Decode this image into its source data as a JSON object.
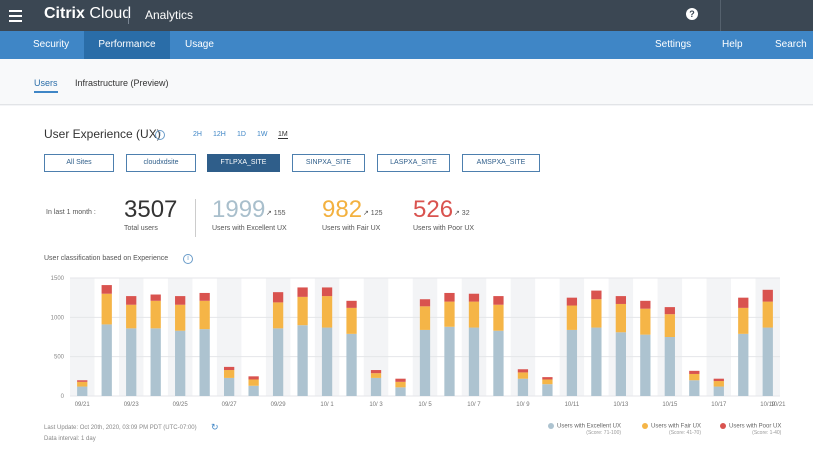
{
  "topbar": {
    "brand_bold": "Citrix",
    "brand_rest": " Cloud",
    "app_name": "Analytics",
    "help_glyph": "?"
  },
  "nav": {
    "left": [
      "Security",
      "Performance",
      "Usage"
    ],
    "right": [
      "Settings",
      "Help",
      "Search"
    ],
    "active": "Performance"
  },
  "subtabs": [
    "Users",
    "Infrastructure (Preview)"
  ],
  "panel": {
    "title": "User Experience (UX)",
    "info_glyph": "i",
    "ranges": [
      "2H",
      "12H",
      "1D",
      "1W",
      "1M"
    ],
    "active_range": "1M",
    "sites": [
      "All Sites",
      "cloudxdsite",
      "FTLPXA_SITE",
      "SINPXA_SITE",
      "LASPXA_SITE",
      "AMSPXA_SITE"
    ],
    "active_site": "FTLPXA_SITE"
  },
  "stats": {
    "label": "In last 1 month :",
    "total": {
      "value": "3507",
      "sub": "Total users",
      "color": "#333333"
    },
    "excellent": {
      "value": "1999",
      "trend": "↗ 155",
      "sub": "Users with Excellent UX",
      "color": "#a9bfcc"
    },
    "fair": {
      "value": "982",
      "trend": "↗ 125",
      "sub": "Users with Fair UX",
      "color": "#f3b13f"
    },
    "poor": {
      "value": "526",
      "trend": "↗ 32",
      "sub": "Users with Poor UX",
      "color": "#d9534f"
    }
  },
  "chart_title": "User classification based on Experience",
  "chart_data": {
    "type": "bar",
    "stacked": true,
    "ylim": [
      0,
      1500
    ],
    "yticks": [
      0,
      500,
      1000,
      1500
    ],
    "xticklabels": [
      "09/21",
      "09/23",
      "09/25",
      "09/27",
      "09/29",
      "10/ 1",
      "10/ 3",
      "10/ 5",
      "10/ 7",
      "10/ 9",
      "10/11",
      "10/13",
      "10/15",
      "10/17",
      "10/19",
      "10/21"
    ],
    "series": [
      {
        "name": "Users with Excellent UX",
        "color": "#adc3d0",
        "values": [
          120,
          910,
          860,
          860,
          830,
          850,
          230,
          130,
          860,
          900,
          870,
          790,
          230,
          110,
          840,
          880,
          870,
          830,
          220,
          150,
          840,
          870,
          810,
          780,
          750,
          200,
          120,
          790,
          870
        ]
      },
      {
        "name": "Users with Fair UX",
        "color": "#f5b547",
        "values": [
          60,
          390,
          300,
          350,
          330,
          360,
          100,
          80,
          330,
          360,
          400,
          330,
          60,
          70,
          300,
          320,
          330,
          330,
          80,
          60,
          310,
          360,
          360,
          330,
          290,
          80,
          70,
          330,
          330
        ]
      },
      {
        "name": "Users with Poor UX",
        "color": "#d9534f",
        "values": [
          20,
          110,
          110,
          80,
          110,
          100,
          40,
          40,
          130,
          120,
          110,
          90,
          40,
          40,
          90,
          110,
          100,
          110,
          40,
          30,
          100,
          110,
          100,
          100,
          90,
          40,
          30,
          130,
          150
        ]
      }
    ]
  },
  "legend": [
    {
      "label": "Users with Excellent UX",
      "score": "(Score: 71-100)",
      "color": "#adc3d0"
    },
    {
      "label": "Users with Fair UX",
      "score": "(Score: 41-70)",
      "color": "#f5b547"
    },
    {
      "label": "Users with Poor UX",
      "score": "(Score: 1-40)",
      "color": "#d9534f"
    }
  ],
  "footer": {
    "last_update": "Last Update: Oct 20th, 2020, 03:09 PM PDT (UTC-07:00)",
    "interval": "Data interval: 1 day",
    "refresh_glyph": "↻"
  }
}
